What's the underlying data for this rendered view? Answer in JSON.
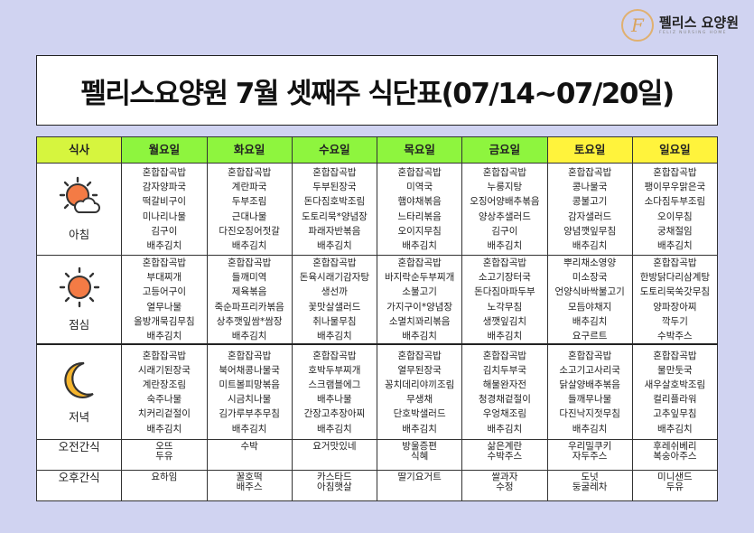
{
  "logo": {
    "name": "펠리스 요양원",
    "subtitle": "FELIZ NURSING HOME",
    "mark": "F"
  },
  "title": "펠리스요양원 7월 셋째주 식단표(07/14~07/20일)",
  "colors": {
    "background": "#d0d3f1",
    "meal_header": "#d6f53e",
    "weekday_header": "#8ef53e",
    "weekend_header": "#fff33c",
    "sun": "#f47b45"
  },
  "table": {
    "meal_header": "식사",
    "days": [
      "월요일",
      "화요일",
      "수요일",
      "목요일",
      "금요일",
      "토요일",
      "일요일"
    ],
    "rows": [
      {
        "label": "아침",
        "icon": "sun-cloud-icon",
        "cells": [
          [
            "혼합잡곡밥",
            "감자양파국",
            "떡갈비구이",
            "미나리나물",
            "김구이",
            "배추김치"
          ],
          [
            "혼합잡곡밥",
            "계란파국",
            "두부조림",
            "근대나물",
            "다진오징어젓갈",
            "배추김치"
          ],
          [
            "혼합잡곡밥",
            "두부된장국",
            "돈다짐호박조림",
            "도토리묵*양념장",
            "파래자반볶음",
            "배추김치"
          ],
          [
            "혼합잡곡밥",
            "미역국",
            "햄야채볶음",
            "느타리볶음",
            "오이지무침",
            "배추김치"
          ],
          [
            "혼합잡곡밥",
            "누룽지탕",
            "오징어양배추볶음",
            "양상추샐러드",
            "김구이",
            "배추김치"
          ],
          [
            "혼합잡곡밥",
            "콩나물국",
            "콩불고기",
            "감자샐러드",
            "양념깻잎무침",
            "배추김치"
          ],
          [
            "혼합잡곡밥",
            "팽이무우맑은국",
            "소다짐두부조림",
            "오이무침",
            "궁채절임",
            "배추김치"
          ]
        ]
      },
      {
        "label": "점심",
        "icon": "sun-icon",
        "cells": [
          [
            "혼합잡곡밥",
            "부대찌개",
            "고등어구이",
            "열무나물",
            "올방개묵김무침",
            "배추김치"
          ],
          [
            "혼합잡곡밥",
            "들깨미역",
            "제육볶음",
            "죽순파프리카볶음",
            "상추깻잎쌈*쌈장",
            "배추김치"
          ],
          [
            "혼합잡곡밥",
            "돈육시래기감자탕",
            "생선까",
            "꽃맛살샐러드",
            "취나물무침",
            "배추김치"
          ],
          [
            "혼합잡곡밥",
            "바지락순두부찌개",
            "소불고기",
            "가지구이*양념장",
            "소멸치꽈리볶음",
            "배추김치"
          ],
          [
            "혼합잡곡밥",
            "소고기장터국",
            "돈다짐마파두부",
            "노각무침",
            "생깻잎김치",
            "배추김치"
          ],
          [
            "뿌리채소영양",
            "미소장국",
            "언양식바싹불고기",
            "모듬야채지",
            "배추김치",
            "요구르트"
          ],
          [
            "혼합잡곡밥",
            "한방닭다리삼계탕",
            "도토리묵쑥갓무침",
            "양파장아찌",
            "깍두기",
            "수박주스"
          ]
        ]
      },
      {
        "label": "저녁",
        "icon": "crescent-moon-icon",
        "cells": [
          [
            "혼합잡곡밥",
            "시래기된장국",
            "계란장조림",
            "숙주나물",
            "치커리겉절이",
            "배추김치"
          ],
          [
            "혼합잡곡밥",
            "북어채콩나물국",
            "미트볼피망볶음",
            "시금치나물",
            "김가루부추무침",
            "배추김치"
          ],
          [
            "혼합잡곡밥",
            "호박두부찌개",
            "스크램블에그",
            "배추나물",
            "간장고추장아찌",
            "배추김치"
          ],
          [
            "혼합잡곡밥",
            "열무된장국",
            "꽁치데리야끼조림",
            "무생채",
            "단호박샐러드",
            "배추김치"
          ],
          [
            "혼합잡곡밥",
            "김치두부국",
            "해물완자전",
            "청경채겉절이",
            "우엉채조림",
            "배추김치"
          ],
          [
            "혼합잡곡밥",
            "소고기고사리국",
            "닭살양배추볶음",
            "들깨무나물",
            "다진낙지젓무침",
            "배추김치"
          ],
          [
            "혼합잡곡밥",
            "물만둣국",
            "새우살호박조림",
            "컬리플라워",
            "고추잎무침",
            "배추김치"
          ]
        ]
      },
      {
        "label": "오전간식",
        "cells": [
          [
            "오뜨",
            "두유"
          ],
          [
            "수박"
          ],
          [
            "요거맛있네"
          ],
          [
            "방울증편",
            "식혜"
          ],
          [
            "삶은계란",
            "수박주스"
          ],
          [
            "우리밀쿠키",
            "자두주스"
          ],
          [
            "후레쉬베리",
            "복숭아주스"
          ]
        ]
      },
      {
        "label": "오후간식",
        "cells": [
          [
            "요하임"
          ],
          [
            "꿀호떡",
            "배주스"
          ],
          [
            "카스타드",
            "아침햇살"
          ],
          [
            "딸기요거트"
          ],
          [
            "쌀과자",
            "수정"
          ],
          [
            "도넛",
            "둥굴레차"
          ],
          [
            "미니샌드",
            "두유"
          ]
        ]
      }
    ]
  }
}
